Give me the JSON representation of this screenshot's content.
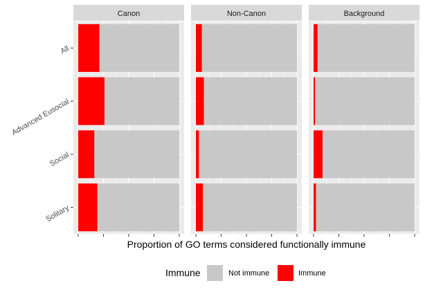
{
  "chart_data": {
    "type": "bar",
    "orientation": "horizontal",
    "stacked": "proportion",
    "xlabel": "Proportion of GO terms considered functionally immune",
    "ylabel": "",
    "xlim": [
      0,
      1
    ],
    "categories": [
      "All",
      "Advanced Eusocial",
      "Social",
      "Solitary"
    ],
    "facets": [
      {
        "name": "Canon",
        "series": [
          {
            "name": "Immune",
            "values": [
              0.21,
              0.26,
              0.16,
              0.19
            ]
          },
          {
            "name": "Not immune",
            "values": [
              0.79,
              0.74,
              0.84,
              0.81
            ]
          }
        ]
      },
      {
        "name": "Non-Canon",
        "series": [
          {
            "name": "Immune",
            "values": [
              0.06,
              0.08,
              0.03,
              0.07
            ]
          },
          {
            "name": "Not immune",
            "values": [
              0.94,
              0.92,
              0.97,
              0.93
            ]
          }
        ]
      },
      {
        "name": "Background",
        "series": [
          {
            "name": "Immune",
            "values": [
              0.04,
              0.015,
              0.09,
              0.025
            ]
          },
          {
            "name": "Not immune",
            "values": [
              0.96,
              0.985,
              0.91,
              0.975
            ]
          }
        ]
      }
    ],
    "legend": {
      "title": "Immune",
      "position": "bottom",
      "entries": [
        {
          "label": "Not immune",
          "color": "#c8c8c8"
        },
        {
          "label": "Immune",
          "color": "#ff0000"
        }
      ]
    },
    "grid": true,
    "colors": {
      "Immune": "#ff0000",
      "Not immune": "#c8c8c8",
      "panel": "#ebebeb",
      "strip": "#d9d9d9"
    }
  }
}
